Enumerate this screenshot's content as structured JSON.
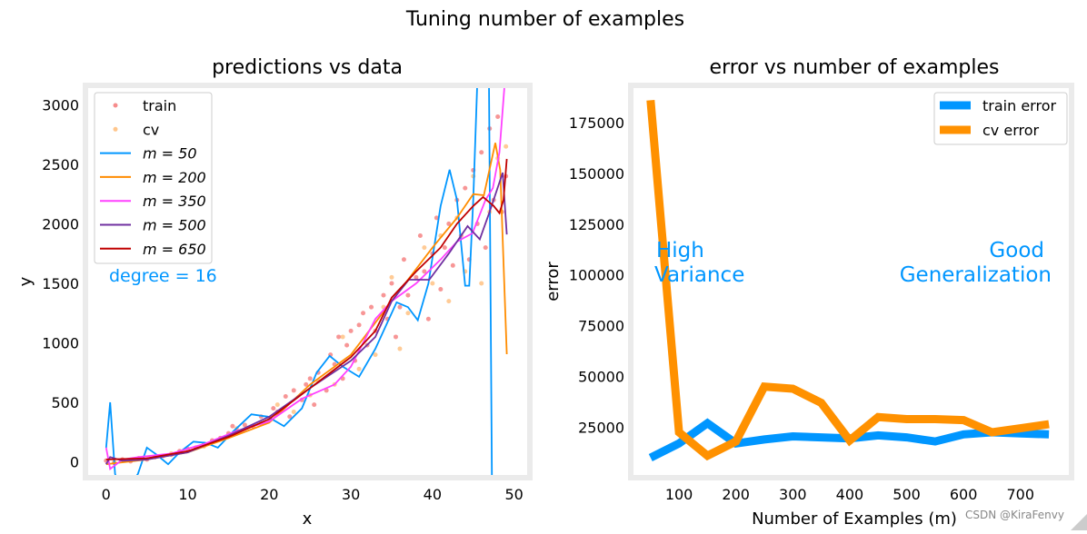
{
  "suptitle": "Tuning number of examples",
  "watermark": "CSDN @KiraFenvy",
  "chart_data": [
    {
      "type": "scatter+line",
      "title": "predictions vs data",
      "xlabel": "x",
      "ylabel": "y",
      "xlim": [
        -2.2,
        51.6
      ],
      "ylim": [
        -110,
        3140
      ],
      "xticks": [
        0,
        10,
        20,
        30,
        40,
        50
      ],
      "yticks": [
        0,
        500,
        1000,
        1500,
        2000,
        2500,
        3000
      ],
      "legend_position": "upper-left",
      "annotation": "degree = 16",
      "annotation_color": "#0096ff",
      "scatter": [
        {
          "name": "train",
          "color": "#f04040",
          "points": [
            [
              0,
              10
            ],
            [
              1,
              -10
            ],
            [
              2,
              20
            ],
            [
              3,
              5
            ],
            [
              4,
              30
            ],
            [
              5,
              20
            ],
            [
              6,
              40
            ],
            [
              7,
              50
            ],
            [
              8,
              60
            ],
            [
              9,
              90
            ],
            [
              10,
              110
            ],
            [
              11,
              120
            ],
            [
              12,
              150
            ],
            [
              13,
              180
            ],
            [
              14,
              200
            ],
            [
              15,
              240
            ],
            [
              15.5,
              300
            ],
            [
              16,
              260
            ],
            [
              17,
              310
            ],
            [
              18,
              300
            ],
            [
              19,
              380
            ],
            [
              20,
              350
            ],
            [
              20.5,
              450
            ],
            [
              21,
              420
            ],
            [
              22,
              550
            ],
            [
              22.5,
              380
            ],
            [
              23,
              600
            ],
            [
              24,
              520
            ],
            [
              24.5,
              650
            ],
            [
              25,
              700
            ],
            [
              25.5,
              480
            ],
            [
              26,
              750
            ],
            [
              27,
              600
            ],
            [
              27.5,
              900
            ],
            [
              28,
              820
            ],
            [
              28.5,
              1050
            ],
            [
              29,
              700
            ],
            [
              29.5,
              980
            ],
            [
              30,
              1100
            ],
            [
              30.5,
              850
            ],
            [
              31,
              1150
            ],
            [
              31.5,
              1250
            ],
            [
              32,
              980
            ],
            [
              32.5,
              1300
            ],
            [
              33,
              1100
            ],
            [
              34,
              1400
            ],
            [
              34.5,
              1200
            ],
            [
              35,
              1500
            ],
            [
              35.5,
              1050
            ],
            [
              36,
              1300
            ],
            [
              36.5,
              1700
            ],
            [
              37,
              1400
            ],
            [
              38,
              1550
            ],
            [
              38.5,
              1900
            ],
            [
              39,
              1600
            ],
            [
              39.5,
              1200
            ],
            [
              40,
              1750
            ],
            [
              40.5,
              2050
            ],
            [
              41,
              1450
            ],
            [
              41.5,
              1800
            ],
            [
              42,
              2000
            ],
            [
              42.5,
              1650
            ],
            [
              43,
              2200
            ],
            [
              43.5,
              1900
            ],
            [
              44,
              2300
            ],
            [
              44.5,
              1700
            ],
            [
              45,
              2450
            ],
            [
              45.5,
              2000
            ],
            [
              46,
              2600
            ],
            [
              46.5,
              1800
            ],
            [
              47,
              2800
            ],
            [
              47.5,
              2200
            ],
            [
              48,
              2900
            ],
            [
              48.5,
              2100
            ],
            [
              49,
              2400
            ]
          ]
        },
        {
          "name": "cv",
          "color": "#ffa040",
          "points": [
            [
              1,
              0
            ],
            [
              4,
              30
            ],
            [
              8,
              70
            ],
            [
              12,
              130
            ],
            [
              16,
              280
            ],
            [
              19,
              320
            ],
            [
              21,
              480
            ],
            [
              23,
              420
            ],
            [
              25,
              560
            ],
            [
              26,
              680
            ],
            [
              28,
              650
            ],
            [
              29,
              1050
            ],
            [
              31,
              780
            ],
            [
              33,
              900
            ],
            [
              34,
              1300
            ],
            [
              35,
              1550
            ],
            [
              36,
              950
            ],
            [
              37,
              1250
            ],
            [
              39,
              1800
            ],
            [
              40,
              1500
            ],
            [
              41,
              1900
            ],
            [
              42,
              1350
            ],
            [
              43,
              2050
            ],
            [
              44,
              1600
            ],
            [
              45,
              2400
            ],
            [
              46,
              1500
            ],
            [
              47,
              2100
            ],
            [
              48,
              2550
            ],
            [
              49,
              2650
            ]
          ]
        }
      ],
      "lines": [
        {
          "name": "m = 50",
          "color": "#0096ff",
          "points": [
            [
              0,
              120
            ],
            [
              0.5,
              500
            ],
            [
              1.1,
              -100
            ],
            [
              2,
              -300
            ],
            [
              3.9,
              -100
            ],
            [
              5,
              120
            ],
            [
              6.2,
              60
            ],
            [
              7.6,
              -20
            ],
            [
              9,
              80
            ],
            [
              10.7,
              170
            ],
            [
              12.2,
              160
            ],
            [
              13.7,
              120
            ],
            [
              15.5,
              250
            ],
            [
              17.8,
              400
            ],
            [
              19.8,
              380
            ],
            [
              21.8,
              300
            ],
            [
              24,
              450
            ],
            [
              25.8,
              750
            ],
            [
              27.4,
              890
            ],
            [
              29,
              800
            ],
            [
              31,
              715
            ],
            [
              33,
              950
            ],
            [
              35.6,
              1340
            ],
            [
              37,
              1300
            ],
            [
              38.2,
              1190
            ],
            [
              39.5,
              1500
            ],
            [
              41,
              2150
            ],
            [
              42.1,
              2455
            ],
            [
              43,
              2200
            ],
            [
              44,
              1480
            ],
            [
              44.5,
              1480
            ],
            [
              45,
              2200
            ],
            [
              45.6,
              3400
            ],
            [
              46.9,
              3400
            ],
            [
              47.3,
              -300
            ]
          ]
        },
        {
          "name": "m = 200",
          "color": "#ff8c00",
          "points": [
            [
              0,
              -20
            ],
            [
              5,
              20
            ],
            [
              10,
              80
            ],
            [
              15,
              200
            ],
            [
              20,
              330
            ],
            [
              25,
              650
            ],
            [
              30,
              900
            ],
            [
              35,
              1350
            ],
            [
              40,
              1800
            ],
            [
              43,
              2050
            ],
            [
              45,
              2250
            ],
            [
              46.3,
              2240
            ],
            [
              47.7,
              2680
            ],
            [
              48.3,
              2450
            ],
            [
              49.1,
              905
            ]
          ]
        },
        {
          "name": "m = 350",
          "color": "#ff40ff",
          "points": [
            [
              0,
              120
            ],
            [
              0.5,
              -60
            ],
            [
              2,
              20
            ],
            [
              4,
              40
            ],
            [
              8,
              70
            ],
            [
              12,
              150
            ],
            [
              16,
              260
            ],
            [
              20,
              340
            ],
            [
              24,
              530
            ],
            [
              28,
              650
            ],
            [
              30,
              800
            ],
            [
              33,
              1200
            ],
            [
              35,
              1350
            ],
            [
              38,
              1500
            ],
            [
              41,
              1700
            ],
            [
              43,
              1850
            ],
            [
              44.9,
              1920
            ],
            [
              46.5,
              2200
            ],
            [
              47.4,
              2300
            ],
            [
              48.2,
              2600
            ],
            [
              48.8,
              3140
            ]
          ]
        },
        {
          "name": "m = 500",
          "color": "#7030a0",
          "points": [
            [
              0,
              -20
            ],
            [
              0.5,
              40
            ],
            [
              2,
              10
            ],
            [
              5,
              20
            ],
            [
              10,
              80
            ],
            [
              15,
              220
            ],
            [
              20,
              380
            ],
            [
              25,
              620
            ],
            [
              30,
              850
            ],
            [
              33,
              1050
            ],
            [
              35,
              1350
            ],
            [
              37.1,
              1530
            ],
            [
              39.6,
              1530
            ],
            [
              42,
              1750
            ],
            [
              44.3,
              1980
            ],
            [
              45.8,
              1870
            ],
            [
              47,
              2100
            ],
            [
              48.6,
              2430
            ],
            [
              49.1,
              1910
            ]
          ]
        },
        {
          "name": "m = 650",
          "color": "#c00000",
          "points": [
            [
              0,
              20
            ],
            [
              5,
              30
            ],
            [
              10,
              90
            ],
            [
              15,
              210
            ],
            [
              20,
              360
            ],
            [
              25,
              620
            ],
            [
              30,
              880
            ],
            [
              33,
              1100
            ],
            [
              35,
              1380
            ],
            [
              38,
              1600
            ],
            [
              41,
              1800
            ],
            [
              43,
              2000
            ],
            [
              45,
              2150
            ],
            [
              46.2,
              2225
            ],
            [
              47.5,
              2150
            ],
            [
              48.2,
              2090
            ],
            [
              48.7,
              2200
            ],
            [
              49.1,
              2545
            ]
          ]
        }
      ]
    },
    {
      "type": "line",
      "title": "error vs number of examples",
      "xlabel": "Number of Examples (m)",
      "ylabel": "error",
      "xlim": [
        20,
        785
      ],
      "ylim": [
        1500,
        192000
      ],
      "xticks": [
        100,
        200,
        300,
        400,
        500,
        600,
        700
      ],
      "yticks": [
        25000,
        50000,
        75000,
        100000,
        125000,
        150000,
        175000
      ],
      "legend_position": "upper-right",
      "x": [
        50,
        100,
        150,
        200,
        250,
        300,
        350,
        400,
        450,
        500,
        550,
        600,
        650,
        700,
        750
      ],
      "series": [
        {
          "name": "train error",
          "color": "#0096ff",
          "values": [
            10000,
            17000,
            27000,
            17000,
            19000,
            20500,
            20000,
            19500,
            21000,
            20000,
            18000,
            21500,
            22500,
            22000,
            21500
          ]
        },
        {
          "name": "cv error",
          "color": "#ff9100",
          "values": [
            186000,
            22500,
            11000,
            18000,
            45000,
            44000,
            37000,
            18500,
            30000,
            29000,
            29000,
            28500,
            22500,
            24500,
            26500
          ]
        }
      ],
      "annotations": [
        {
          "text": [
            "High",
            "Variance"
          ],
          "color": "#0096ff",
          "align": "left"
        },
        {
          "text": [
            "Good",
            "Generalization"
          ],
          "color": "#0096ff",
          "align": "right"
        }
      ]
    }
  ]
}
